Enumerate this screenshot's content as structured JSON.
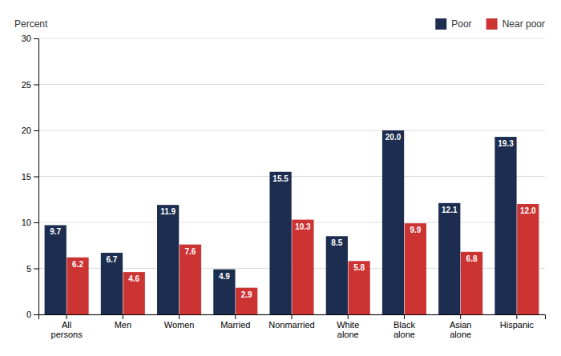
{
  "chart_data": {
    "type": "bar",
    "categories": [
      "All\npersons",
      "Men",
      "Women",
      "Married",
      "Nonmarried",
      "White\nalone",
      "Black\nalone",
      "Asian\nalone",
      "Hispanic"
    ],
    "series": [
      {
        "name": "Poor",
        "color": "#1c2d4f",
        "values": [
          9.7,
          6.7,
          11.9,
          4.9,
          15.5,
          8.5,
          20.0,
          12.1,
          19.3
        ],
        "value_labels": [
          "9.7",
          "6.7",
          "11.9",
          "4.9",
          "15.5",
          "8.5",
          "20.0",
          "12.1",
          "19.3"
        ]
      },
      {
        "name": "Near poor",
        "color": "#cc3333",
        "values": [
          6.2,
          4.6,
          7.6,
          2.9,
          10.3,
          5.8,
          9.9,
          6.8,
          12.0
        ],
        "value_labels": [
          "6.2",
          "4.6",
          "7.6",
          "2.9",
          "10.3",
          "5.8",
          "9.9",
          "6.8",
          "12.0"
        ]
      }
    ],
    "ylabel": "Percent",
    "ylim": [
      0,
      30
    ],
    "yticks": [
      0,
      5,
      10,
      15,
      20,
      25,
      30
    ],
    "grid": true,
    "legend": "upper right",
    "data_labels": true
  }
}
